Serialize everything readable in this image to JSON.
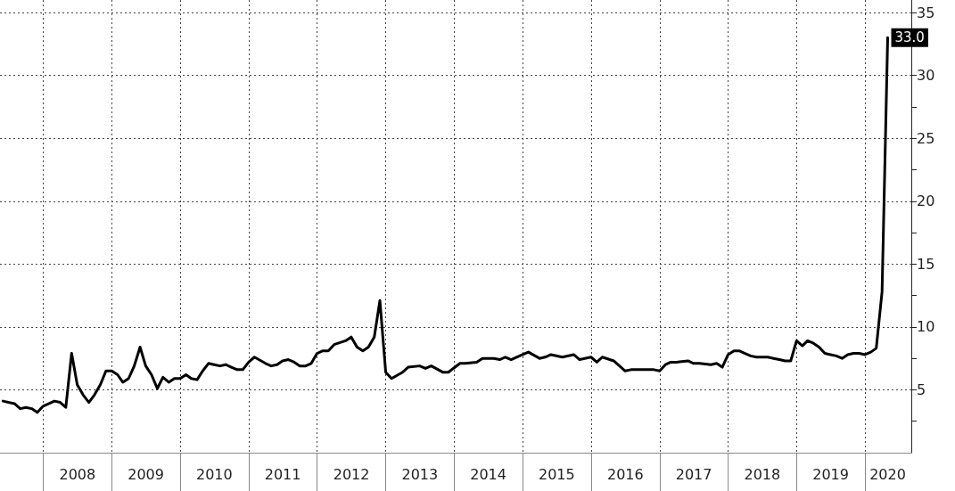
{
  "chart_data": {
    "type": "line",
    "x": [
      "2007-06",
      "2007-08",
      "2007-09",
      "2007-10",
      "2007-11",
      "2007-12",
      "2008-01",
      "2008-02",
      "2008-03",
      "2008-04",
      "2008-05",
      "2008-06",
      "2008-07",
      "2008-08",
      "2008-09",
      "2008-10",
      "2008-11",
      "2008-12",
      "2009-01",
      "2009-02",
      "2009-03",
      "2009-04",
      "2009-05",
      "2009-06",
      "2009-07",
      "2009-08",
      "2009-09",
      "2009-10",
      "2009-11",
      "2009-12",
      "2010-01",
      "2010-02",
      "2010-03",
      "2010-04",
      "2010-05",
      "2010-06",
      "2010-07",
      "2010-08",
      "2010-09",
      "2010-10",
      "2010-11",
      "2010-12",
      "2011-01",
      "2011-02",
      "2011-04",
      "2011-05",
      "2011-06",
      "2011-07",
      "2011-08",
      "2011-09",
      "2011-10",
      "2011-11",
      "2011-12",
      "2012-01",
      "2012-02",
      "2012-03",
      "2012-04",
      "2012-06",
      "2012-07",
      "2012-08",
      "2012-09",
      "2012-10",
      "2012-11",
      "2012-12",
      "2013-01",
      "2013-02",
      "2013-04",
      "2013-05",
      "2013-07",
      "2013-08",
      "2013-09",
      "2013-11",
      "2013-12",
      "2014-02",
      "2014-03",
      "2014-05",
      "2014-06",
      "2014-08",
      "2014-09",
      "2014-10",
      "2014-11",
      "2015-01",
      "2015-02",
      "2015-04",
      "2015-05",
      "2015-06",
      "2015-08",
      "2015-10",
      "2015-11",
      "2016-01",
      "2016-02",
      "2016-03",
      "2016-05",
      "2016-07",
      "2016-08",
      "2016-10",
      "2016-12",
      "2017-01",
      "2017-02",
      "2017-03",
      "2017-04",
      "2017-06",
      "2017-07",
      "2017-08",
      "2017-10",
      "2017-11",
      "2017-12",
      "2018-01",
      "2018-02",
      "2018-03",
      "2018-04",
      "2018-05",
      "2018-06",
      "2018-07",
      "2018-08",
      "2018-09",
      "2018-10",
      "2018-11",
      "2018-12",
      "2019-01",
      "2019-02",
      "2019-03",
      "2019-04",
      "2019-05",
      "2019-06",
      "2019-07",
      "2019-08",
      "2019-09",
      "2019-10",
      "2019-11",
      "2019-12",
      "2020-01",
      "2020-02",
      "2020-03",
      "2020-04",
      "2020-05"
    ],
    "series": [
      {
        "color": "#000000",
        "values": [
          4.1,
          3.9,
          3.5,
          3.6,
          3.5,
          3.2,
          3.7,
          3.9,
          4.1,
          4.0,
          3.6,
          7.9,
          5.4,
          4.6,
          4.0,
          4.6,
          5.4,
          6.5,
          6.5,
          6.2,
          5.6,
          5.9,
          6.9,
          8.4,
          6.9,
          6.2,
          5.1,
          6.0,
          5.6,
          5.9,
          5.9,
          6.2,
          5.9,
          5.8,
          6.5,
          7.1,
          7.0,
          6.9,
          7.0,
          6.8,
          6.6,
          6.6,
          7.2,
          7.6,
          7.1,
          6.9,
          7.0,
          7.3,
          7.4,
          7.2,
          6.9,
          6.9,
          7.1,
          7.9,
          8.1,
          8.1,
          8.6,
          8.9,
          9.2,
          8.4,
          8.1,
          8.4,
          9.2,
          12.1,
          6.4,
          5.9,
          6.4,
          6.8,
          6.9,
          6.7,
          6.9,
          6.4,
          6.4,
          7.1,
          7.1,
          7.2,
          7.5,
          7.5,
          7.4,
          7.6,
          7.4,
          7.8,
          8.0,
          7.5,
          7.6,
          7.8,
          7.6,
          7.8,
          7.4,
          7.6,
          7.2,
          7.6,
          7.3,
          6.5,
          6.6,
          6.6,
          6.6,
          6.5,
          7.0,
          7.2,
          7.2,
          7.3,
          7.1,
          7.1,
          7.0,
          7.1,
          6.8,
          7.8,
          8.1,
          8.1,
          7.9,
          7.7,
          7.6,
          7.6,
          7.6,
          7.5,
          7.4,
          7.3,
          7.3,
          8.9,
          8.5,
          8.9,
          8.7,
          8.4,
          7.9,
          7.8,
          7.7,
          7.5,
          7.8,
          7.9,
          7.9,
          7.8,
          8.0,
          8.3,
          12.8,
          33.0
        ],
        "value_labels": [
          null,
          null,
          null,
          null,
          null,
          null,
          null,
          null,
          null,
          null,
          null,
          null,
          null,
          null,
          null,
          null,
          null,
          null,
          null,
          null,
          null,
          null,
          null,
          null,
          null,
          null,
          null,
          null,
          null,
          null,
          null,
          null,
          null,
          null,
          null,
          null,
          null,
          null,
          null,
          null,
          null,
          null,
          null,
          null,
          null,
          null,
          null,
          null,
          null,
          null,
          null,
          null,
          null,
          null,
          null,
          null,
          null,
          null,
          null,
          null,
          null,
          null,
          null,
          null,
          null,
          null,
          null,
          null,
          null,
          null,
          null,
          null,
          null,
          null,
          null,
          null,
          null,
          null,
          null,
          null,
          null,
          null,
          null,
          null,
          null,
          null,
          null,
          null,
          null,
          null,
          null,
          null,
          null,
          null,
          null,
          null,
          null,
          null,
          null,
          null,
          null,
          null,
          null,
          null,
          null,
          null,
          null,
          null,
          null,
          null,
          null,
          null,
          null,
          null,
          null,
          null,
          null,
          null,
          null,
          null,
          null,
          null,
          null,
          null,
          null,
          null,
          null,
          null,
          null,
          null,
          null,
          null,
          null,
          null,
          null,
          "33.0"
        ]
      }
    ],
    "xlim": [
      "2007-05-16",
      "2020-09-04"
    ],
    "xticks": [
      {
        "value": "2008-01-01",
        "label": null
      },
      {
        "value": "2008-07-02",
        "label": "2008"
      },
      {
        "value": "2009-01-01",
        "label": null
      },
      {
        "value": "2009-07-02",
        "label": "2009"
      },
      {
        "value": "2010-01-01",
        "label": null
      },
      {
        "value": "2010-07-02",
        "label": "2010"
      },
      {
        "value": "2011-01-01",
        "label": null
      },
      {
        "value": "2011-07-02",
        "label": "2011"
      },
      {
        "value": "2012-01-01",
        "label": null
      },
      {
        "value": "2012-07-02",
        "label": "2012"
      },
      {
        "value": "2013-01-01",
        "label": null
      },
      {
        "value": "2013-07-02",
        "label": "2013"
      },
      {
        "value": "2014-01-01",
        "label": null
      },
      {
        "value": "2014-07-02",
        "label": "2014"
      },
      {
        "value": "2015-01-01",
        "label": null
      },
      {
        "value": "2015-07-02",
        "label": "2015"
      },
      {
        "value": "2016-01-01",
        "label": null
      },
      {
        "value": "2016-07-02",
        "label": "2016"
      },
      {
        "value": "2017-01-01",
        "label": null
      },
      {
        "value": "2017-07-02",
        "label": "2017"
      },
      {
        "value": "2018-01-01",
        "label": null
      },
      {
        "value": "2018-07-02",
        "label": "2018"
      },
      {
        "value": "2019-01-01",
        "label": null
      },
      {
        "value": "2019-07-02",
        "label": "2019"
      },
      {
        "value": "2020-01-01",
        "label": null
      },
      {
        "value": "2020-05-01",
        "label": "2020"
      }
    ],
    "ylim": [
      0,
      36
    ],
    "yticks": [
      {
        "value": 2.5,
        "label": null
      },
      5,
      {
        "value": 7.5,
        "label": null
      },
      10,
      {
        "value": 12.5,
        "label": null
      },
      15,
      {
        "value": 17.5,
        "label": null
      },
      20,
      {
        "value": 22.5,
        "label": null
      },
      25,
      {
        "value": 27.5,
        "label": null
      },
      30,
      {
        "value": 32.5,
        "label": null
      },
      35
    ],
    "grid": true,
    "marker": "none",
    "line_style": "solid"
  }
}
